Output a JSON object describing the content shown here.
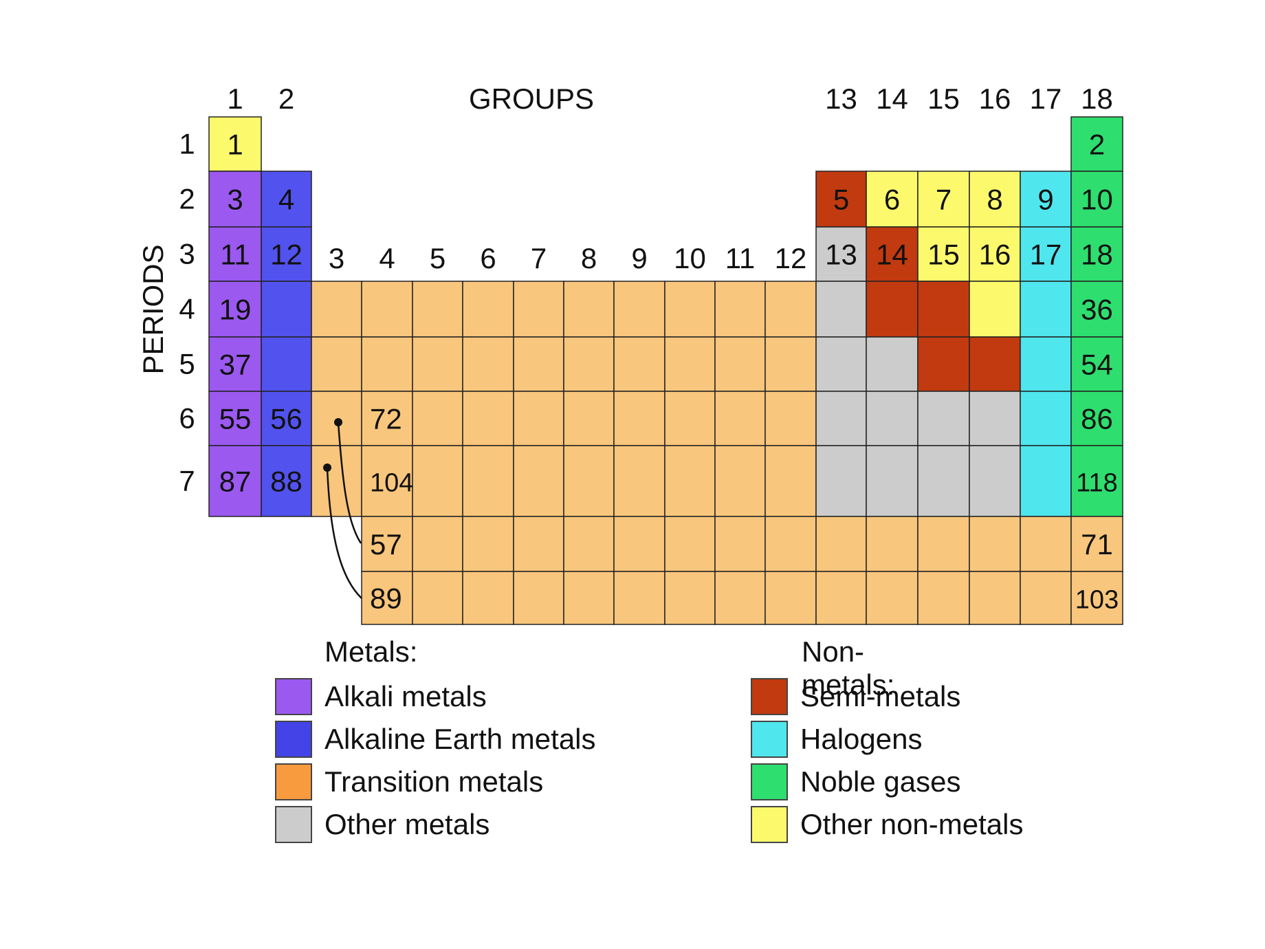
{
  "labels": {
    "groups": "GROUPS",
    "periods": "PERIODS",
    "group_numbers": [
      "1",
      "2",
      "3",
      "4",
      "5",
      "6",
      "7",
      "8",
      "9",
      "10",
      "11",
      "12",
      "13",
      "14",
      "15",
      "16",
      "17",
      "18"
    ],
    "period_numbers": [
      "1",
      "2",
      "3",
      "4",
      "5",
      "6",
      "7"
    ]
  },
  "colors": {
    "alkali": "#9b59f0",
    "alkaline": "#5252ee",
    "transition": "#f8c67c",
    "other_metal": "#cccccc",
    "semi": "#c23a10",
    "halogen": "#4fe6ee",
    "noble": "#2ede6e",
    "other_nonmetal": "#fcfa6c"
  },
  "cell_numbers": [
    {
      "row": 1,
      "col": 1,
      "text": "1"
    },
    {
      "row": 1,
      "col": 18,
      "text": "2"
    },
    {
      "row": 2,
      "col": 1,
      "text": "3"
    },
    {
      "row": 2,
      "col": 2,
      "text": "4"
    },
    {
      "row": 2,
      "col": 13,
      "text": "5"
    },
    {
      "row": 2,
      "col": 14,
      "text": "6"
    },
    {
      "row": 2,
      "col": 15,
      "text": "7"
    },
    {
      "row": 2,
      "col": 16,
      "text": "8"
    },
    {
      "row": 2,
      "col": 17,
      "text": "9"
    },
    {
      "row": 2,
      "col": 18,
      "text": "10"
    },
    {
      "row": 3,
      "col": 1,
      "text": "11"
    },
    {
      "row": 3,
      "col": 2,
      "text": "12"
    },
    {
      "row": 3,
      "col": 13,
      "text": "13"
    },
    {
      "row": 3,
      "col": 14,
      "text": "14"
    },
    {
      "row": 3,
      "col": 15,
      "text": "15"
    },
    {
      "row": 3,
      "col": 16,
      "text": "16"
    },
    {
      "row": 3,
      "col": 17,
      "text": "17"
    },
    {
      "row": 3,
      "col": 18,
      "text": "18"
    },
    {
      "row": 4,
      "col": 1,
      "text": "19"
    },
    {
      "row": 4,
      "col": 18,
      "text": "36"
    },
    {
      "row": 5,
      "col": 1,
      "text": "37"
    },
    {
      "row": 5,
      "col": 18,
      "text": "54"
    },
    {
      "row": 6,
      "col": 1,
      "text": "55"
    },
    {
      "row": 6,
      "col": 2,
      "text": "56"
    },
    {
      "row": 6,
      "col": 4,
      "text": "72"
    },
    {
      "row": 6,
      "col": 18,
      "text": "86"
    },
    {
      "row": 7,
      "col": 1,
      "text": "87"
    },
    {
      "row": 7,
      "col": 2,
      "text": "88"
    },
    {
      "row": 7,
      "col": 4,
      "text": "104"
    },
    {
      "row": 7,
      "col": 18,
      "text": "118"
    },
    {
      "row": 8,
      "col": 4,
      "text": "57"
    },
    {
      "row": 8,
      "col": 18,
      "text": "71"
    },
    {
      "row": 9,
      "col": 4,
      "text": "89"
    },
    {
      "row": 9,
      "col": 18,
      "text": "103"
    }
  ],
  "legend": {
    "metals_heading": "Metals:",
    "nonmetals_heading": "Non-metals:",
    "metals": [
      {
        "label": "Alkali metals",
        "color": "#9b59f0"
      },
      {
        "label": "Alkaline Earth metals",
        "color": "#4343e8"
      },
      {
        "label": "Transition metals",
        "color": "#f89b3e"
      },
      {
        "label": "Other metals",
        "color": "#cccccc"
      }
    ],
    "nonmetals": [
      {
        "label": "Semi-metals",
        "color": "#c23a10"
      },
      {
        "label": "Halogens",
        "color": "#4fe6ee"
      },
      {
        "label": "Noble gases",
        "color": "#2ede6e"
      },
      {
        "label": "Other non-metals",
        "color": "#fcfa6c"
      }
    ]
  }
}
